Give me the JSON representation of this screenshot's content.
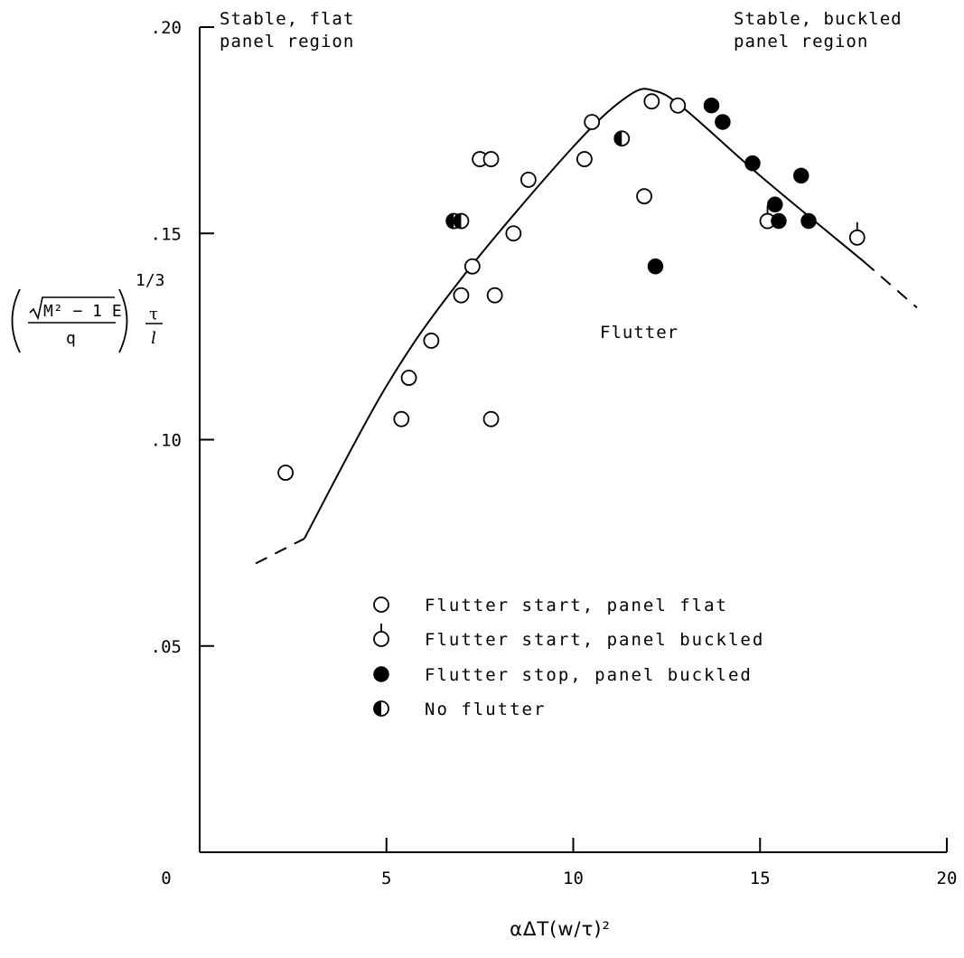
{
  "chart_data": {
    "type": "scatter",
    "xlabel": "αΔT(w/τ)²",
    "ylabel": {
      "radical": "M² − 1  E",
      "denominator": "q",
      "exponent": "1/3",
      "ratio_top": "τ",
      "ratio_bottom": "l"
    },
    "xlim": [
      0,
      20
    ],
    "ylim": [
      0,
      0.2
    ],
    "x_ticks": [
      0,
      5,
      10,
      15,
      20
    ],
    "x_tick_labels": [
      "0",
      "5",
      "10",
      "15",
      "20"
    ],
    "y_ticks": [
      0.05,
      0.1,
      0.15,
      0.2
    ],
    "y_tick_labels": [
      ".05",
      ".10",
      ".15",
      ".20"
    ],
    "grid": false,
    "legend_position": "lower-middle",
    "annotations": {
      "stable_flat": [
        "Stable, flat",
        "panel region"
      ],
      "stable_buckled": [
        "Stable, buckled",
        "panel region"
      ],
      "flutter": "Flutter"
    },
    "boundary_curve": {
      "solid": [
        [
          2.8,
          0.076
        ],
        [
          5,
          0.113
        ],
        [
          7,
          0.139
        ],
        [
          10,
          0.171
        ],
        [
          11.5,
          0.1835
        ],
        [
          12.2,
          0.1845
        ],
        [
          13,
          0.18
        ],
        [
          15,
          0.164
        ],
        [
          17.8,
          0.143
        ]
      ],
      "dashed_low": [
        [
          1.5,
          0.07
        ],
        [
          2.8,
          0.076
        ]
      ],
      "dashed_high": [
        [
          17.8,
          0.143
        ],
        [
          19.2,
          0.132
        ]
      ]
    },
    "series": [
      {
        "name": "Flutter start, panel flat",
        "marker": "open-circle",
        "points": [
          [
            2.3,
            0.092
          ],
          [
            5.4,
            0.105
          ],
          [
            5.6,
            0.115
          ],
          [
            6.2,
            0.124
          ],
          [
            7.0,
            0.135
          ],
          [
            7.3,
            0.142
          ],
          [
            7.5,
            0.168
          ],
          [
            7.8,
            0.168
          ],
          [
            7.8,
            0.105
          ],
          [
            7.9,
            0.135
          ],
          [
            8.4,
            0.15
          ],
          [
            8.8,
            0.163
          ],
          [
            10.3,
            0.168
          ],
          [
            10.5,
            0.177
          ],
          [
            11.9,
            0.159
          ],
          [
            12.1,
            0.182
          ],
          [
            12.8,
            0.181
          ]
        ]
      },
      {
        "name": "Flutter start, panel buckled",
        "marker": "open-circle-tick",
        "points": [
          [
            15.2,
            0.153
          ],
          [
            17.6,
            0.149
          ]
        ]
      },
      {
        "name": "Flutter stop, panel buckled",
        "marker": "filled-circle",
        "points": [
          [
            12.2,
            0.142
          ],
          [
            13.7,
            0.181
          ],
          [
            14.0,
            0.177
          ],
          [
            14.8,
            0.167
          ],
          [
            15.4,
            0.157
          ],
          [
            15.5,
            0.153
          ],
          [
            16.1,
            0.164
          ],
          [
            16.3,
            0.153
          ]
        ]
      },
      {
        "name": "No flutter",
        "marker": "half-filled-circle",
        "points": [
          [
            6.8,
            0.153
          ],
          [
            7.0,
            0.153
          ],
          [
            11.3,
            0.173
          ]
        ]
      }
    ]
  }
}
